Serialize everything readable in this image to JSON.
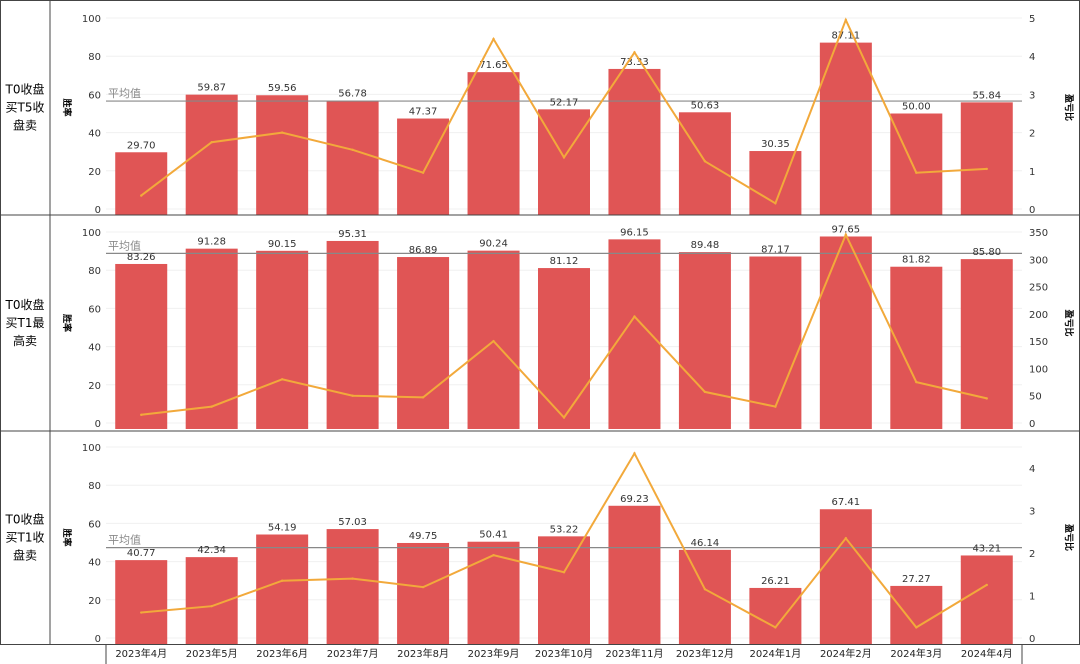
{
  "colors": {
    "bar": "#e05555",
    "line": "#f2a93b",
    "avg_line": "#888888",
    "border": "#444444",
    "grid": "#f0f0f0"
  },
  "chart_data": {
    "type": "bar",
    "categories": [
      "2023年4月",
      "2023年5月",
      "2023年6月",
      "2023年7月",
      "2023年8月",
      "2023年9月",
      "2023年10月",
      "2023年11月",
      "2023年12月",
      "2024年1月",
      "2024年2月",
      "2024年3月",
      "2024年4月"
    ],
    "panels": [
      {
        "row_label": [
          "T0收盘",
          "买T5收",
          "盘卖"
        ],
        "ylabel": "胜率",
        "y2label": "盈亏比",
        "avg_label": "平均值",
        "avg_value": 56.5,
        "ylim": [
          0,
          100
        ],
        "y2lim": [
          0,
          5
        ],
        "y_ticks": [
          0,
          20,
          40,
          60,
          80,
          100
        ],
        "y2_ticks": [
          0,
          1,
          2,
          3,
          4,
          5
        ],
        "series": [
          {
            "name": "胜率",
            "type": "bar",
            "values": [
              29.7,
              59.87,
              59.56,
              56.78,
              47.37,
              71.65,
              52.17,
              73.33,
              50.63,
              30.35,
              87.11,
              50.0,
              55.84
            ]
          },
          {
            "name": "盈亏比",
            "type": "line",
            "axis": "right",
            "values": [
              0.35,
              1.75,
              2.0,
              1.55,
              0.95,
              4.45,
              1.35,
              4.1,
              1.25,
              0.15,
              4.95,
              0.95,
              1.05
            ]
          }
        ]
      },
      {
        "row_label": [
          "T0收盘",
          "买T1最",
          "高卖"
        ],
        "ylabel": "胜率",
        "y2label": "盈亏比",
        "avg_label": "平均值",
        "avg_value": 88.8,
        "ylim": [
          0,
          100
        ],
        "y2lim": [
          0,
          350
        ],
        "y_ticks": [
          0,
          20,
          40,
          60,
          80,
          100
        ],
        "y2_ticks": [
          0,
          50,
          100,
          150,
          200,
          250,
          300,
          350
        ],
        "series": [
          {
            "name": "胜率",
            "type": "bar",
            "values": [
              83.26,
              91.28,
              90.15,
              95.31,
              86.89,
              90.24,
              81.12,
              96.15,
              89.48,
              87.17,
              97.65,
              81.82,
              85.8
            ]
          },
          {
            "name": "盈亏比",
            "type": "line",
            "axis": "right",
            "values": [
              15,
              30,
              80,
              50,
              47,
              150,
              10,
              195,
              57,
              30,
              345,
              75,
              45
            ]
          }
        ]
      },
      {
        "row_label": [
          "T0收盘",
          "买T1收",
          "盘卖"
        ],
        "ylabel": "胜率",
        "y2label": "盈亏比",
        "avg_label": "平均值",
        "avg_value": 47.3,
        "ylim": [
          0,
          100
        ],
        "y2lim": [
          0,
          4.5
        ],
        "y_ticks": [
          0,
          20,
          40,
          60,
          80,
          100
        ],
        "y2_ticks": [
          0,
          1,
          2,
          3,
          4
        ],
        "series": [
          {
            "name": "胜率",
            "type": "bar",
            "values": [
              40.77,
              42.34,
              54.19,
              57.03,
              49.75,
              50.41,
              53.22,
              69.23,
              46.14,
              26.21,
              67.41,
              27.27,
              43.21
            ]
          },
          {
            "name": "盈亏比",
            "type": "line",
            "axis": "right",
            "values": [
              0.6,
              0.75,
              1.35,
              1.4,
              1.2,
              1.95,
              1.55,
              4.35,
              1.15,
              0.25,
              2.35,
              0.25,
              1.25
            ]
          }
        ]
      }
    ]
  }
}
